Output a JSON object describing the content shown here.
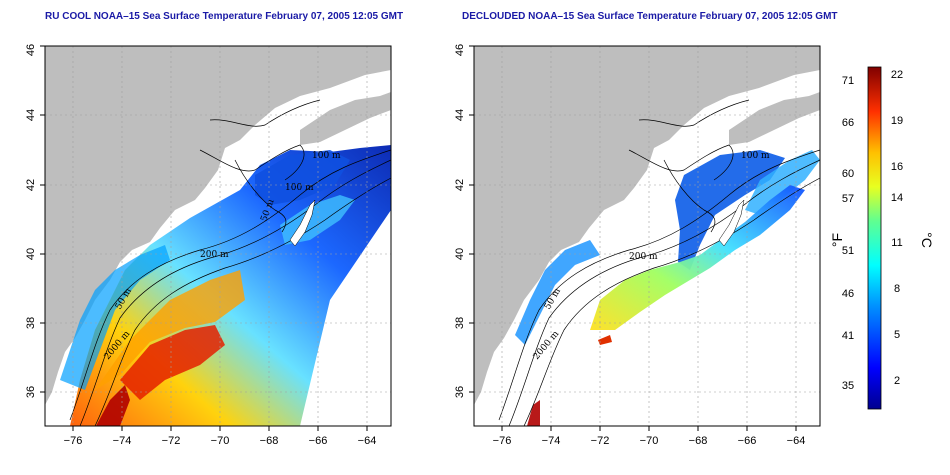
{
  "panels": [
    {
      "title": "RU COOL NOAA–15 Sea Surface Temperature February 07, 2005 12:05 GMT",
      "contour_labels": [
        "100 m",
        "100 m",
        "50 m",
        "200 m",
        "50 m",
        "2000 m"
      ]
    },
    {
      "title": "DECLOUDED NOAA–15 Sea Surface Temperature February 07, 2005 12:05 GMT",
      "contour_labels": [
        "100 m",
        "200 m",
        "50 m",
        "2000 m"
      ]
    }
  ],
  "axes": {
    "x_ticks": [
      "−76",
      "−74",
      "−72",
      "−70",
      "−68",
      "−66",
      "−64"
    ],
    "y_ticks": [
      "36",
      "38",
      "40",
      "42",
      "44",
      "46"
    ]
  },
  "colorbar": {
    "fahrenheit_ticks": [
      "71",
      "66",
      "60",
      "57",
      "51",
      "46",
      "41",
      "35"
    ],
    "celsius_ticks": [
      "22",
      "19",
      "16",
      "14",
      "11",
      "8",
      "5",
      "2"
    ],
    "unit_f": "°F",
    "unit_c": "°C"
  },
  "colors": {
    "land": "#bebebe",
    "title": "#1a1aa6",
    "warm": "#b40000",
    "cold": "#00008f"
  }
}
